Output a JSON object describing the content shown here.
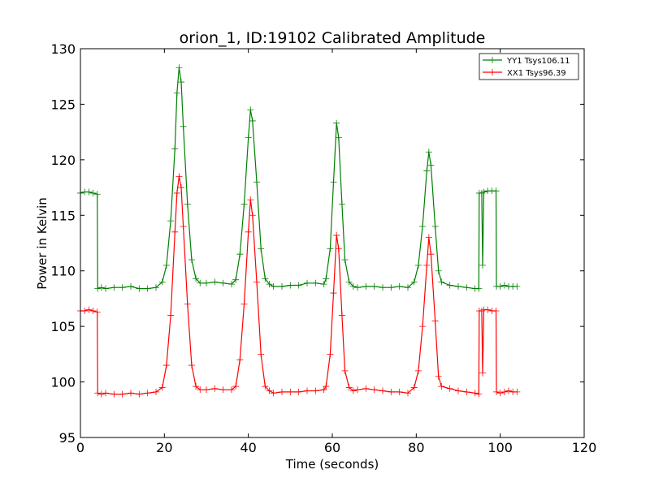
{
  "chart_data": {
    "type": "line",
    "title": "orion_1, ID:19102 Calibrated Amplitude",
    "xlabel": "Time (seconds)",
    "ylabel": "Power in Kelvin",
    "xlim": [
      0,
      120
    ],
    "ylim": [
      95,
      130
    ],
    "xticks": [
      0,
      20,
      40,
      60,
      80,
      100,
      120
    ],
    "yticks": [
      95,
      100,
      105,
      110,
      115,
      120,
      125,
      130
    ],
    "grid": false,
    "legend_position": "top-right",
    "markers": "plus",
    "series": [
      {
        "name": "YY1 Tsys106.11",
        "color": "#008000",
        "points": [
          [
            0,
            117.0
          ],
          [
            1,
            117.1
          ],
          [
            2,
            117.1
          ],
          [
            3,
            117.0
          ],
          [
            4,
            116.9
          ],
          [
            4.1,
            108.4
          ],
          [
            5,
            108.5
          ],
          [
            6,
            108.4
          ],
          [
            8,
            108.5
          ],
          [
            10,
            108.5
          ],
          [
            12,
            108.6
          ],
          [
            14,
            108.4
          ],
          [
            16,
            108.4
          ],
          [
            18,
            108.5
          ],
          [
            19.5,
            109.0
          ],
          [
            20.5,
            110.5
          ],
          [
            21.5,
            114.5
          ],
          [
            22.5,
            121.0
          ],
          [
            23.0,
            126.0
          ],
          [
            23.5,
            128.3
          ],
          [
            24.0,
            127.0
          ],
          [
            24.5,
            123.0
          ],
          [
            25.5,
            116.0
          ],
          [
            26.5,
            111.0
          ],
          [
            27.5,
            109.3
          ],
          [
            28.5,
            108.9
          ],
          [
            30,
            108.9
          ],
          [
            32,
            109.0
          ],
          [
            34,
            108.9
          ],
          [
            36,
            108.8
          ],
          [
            37,
            109.2
          ],
          [
            38,
            111.5
          ],
          [
            39,
            116.0
          ],
          [
            40,
            122.0
          ],
          [
            40.5,
            124.5
          ],
          [
            41,
            123.5
          ],
          [
            42,
            118.0
          ],
          [
            43,
            112.0
          ],
          [
            44,
            109.3
          ],
          [
            45,
            108.8
          ],
          [
            46,
            108.6
          ],
          [
            48,
            108.6
          ],
          [
            50,
            108.7
          ],
          [
            52,
            108.7
          ],
          [
            54,
            108.9
          ],
          [
            56,
            108.9
          ],
          [
            58,
            108.8
          ],
          [
            58.5,
            109.3
          ],
          [
            59.5,
            112.0
          ],
          [
            60.3,
            118.0
          ],
          [
            61.0,
            123.3
          ],
          [
            61.5,
            122.0
          ],
          [
            62.3,
            116.0
          ],
          [
            63.0,
            111.0
          ],
          [
            64.0,
            109.0
          ],
          [
            65,
            108.6
          ],
          [
            66,
            108.5
          ],
          [
            68,
            108.6
          ],
          [
            70,
            108.6
          ],
          [
            72,
            108.5
          ],
          [
            74,
            108.5
          ],
          [
            76,
            108.6
          ],
          [
            78,
            108.5
          ],
          [
            79.5,
            109.0
          ],
          [
            80.5,
            110.5
          ],
          [
            81.5,
            114.0
          ],
          [
            82.5,
            119.0
          ],
          [
            83.0,
            120.7
          ],
          [
            83.5,
            119.5
          ],
          [
            84.5,
            114.0
          ],
          [
            85.3,
            110.0
          ],
          [
            86.0,
            109.0
          ],
          [
            88,
            108.7
          ],
          [
            90,
            108.6
          ],
          [
            92,
            108.5
          ],
          [
            94,
            108.4
          ],
          [
            94.9,
            108.4
          ],
          [
            95.0,
            117.0
          ],
          [
            95.6,
            117.0
          ],
          [
            95.8,
            110.5
          ],
          [
            96.1,
            117.1
          ],
          [
            97,
            117.2
          ],
          [
            98,
            117.2
          ],
          [
            99,
            117.2
          ],
          [
            99.1,
            108.6
          ],
          [
            100,
            108.6
          ],
          [
            101,
            108.7
          ],
          [
            102,
            108.6
          ],
          [
            103,
            108.6
          ],
          [
            104,
            108.6
          ]
        ]
      },
      {
        "name": "XX1 Tsys96.39",
        "color": "#ff0000",
        "points": [
          [
            0,
            106.4
          ],
          [
            1,
            106.4
          ],
          [
            2,
            106.5
          ],
          [
            3,
            106.4
          ],
          [
            4,
            106.3
          ],
          [
            4.1,
            99.0
          ],
          [
            5,
            98.9
          ],
          [
            6,
            99.0
          ],
          [
            8,
            98.9
          ],
          [
            10,
            98.9
          ],
          [
            12,
            99.0
          ],
          [
            14,
            98.9
          ],
          [
            16,
            99.0
          ],
          [
            18,
            99.1
          ],
          [
            19.5,
            99.5
          ],
          [
            20.5,
            101.5
          ],
          [
            21.5,
            106.0
          ],
          [
            22.5,
            113.5
          ],
          [
            23.0,
            117.0
          ],
          [
            23.5,
            118.5
          ],
          [
            24.0,
            117.5
          ],
          [
            24.5,
            114.0
          ],
          [
            25.5,
            107.0
          ],
          [
            26.5,
            101.5
          ],
          [
            27.5,
            99.6
          ],
          [
            28.5,
            99.3
          ],
          [
            30,
            99.3
          ],
          [
            32,
            99.4
          ],
          [
            34,
            99.3
          ],
          [
            36,
            99.3
          ],
          [
            37,
            99.6
          ],
          [
            38,
            102.0
          ],
          [
            39,
            107.0
          ],
          [
            40,
            113.5
          ],
          [
            40.5,
            116.4
          ],
          [
            41,
            115.0
          ],
          [
            42,
            109.0
          ],
          [
            43,
            102.5
          ],
          [
            44,
            99.6
          ],
          [
            45,
            99.2
          ],
          [
            46,
            99.0
          ],
          [
            48,
            99.1
          ],
          [
            50,
            99.1
          ],
          [
            52,
            99.1
          ],
          [
            54,
            99.2
          ],
          [
            56,
            99.2
          ],
          [
            58,
            99.3
          ],
          [
            58.5,
            99.6
          ],
          [
            59.5,
            102.5
          ],
          [
            60.3,
            108.0
          ],
          [
            61.0,
            113.2
          ],
          [
            61.5,
            112.0
          ],
          [
            62.3,
            106.0
          ],
          [
            63.0,
            101.0
          ],
          [
            64.0,
            99.5
          ],
          [
            65,
            99.2
          ],
          [
            66,
            99.3
          ],
          [
            68,
            99.4
          ],
          [
            70,
            99.3
          ],
          [
            72,
            99.2
          ],
          [
            74,
            99.1
          ],
          [
            76,
            99.1
          ],
          [
            78,
            99.0
          ],
          [
            79.5,
            99.5
          ],
          [
            80.5,
            101.0
          ],
          [
            81.5,
            105.0
          ],
          [
            82.5,
            110.5
          ],
          [
            83.0,
            113.0
          ],
          [
            83.5,
            111.5
          ],
          [
            84.5,
            105.5
          ],
          [
            85.3,
            100.5
          ],
          [
            86.0,
            99.6
          ],
          [
            88,
            99.4
          ],
          [
            90,
            99.2
          ],
          [
            92,
            99.1
          ],
          [
            94,
            99.0
          ],
          [
            94.9,
            98.9
          ],
          [
            95.0,
            106.4
          ],
          [
            95.6,
            106.4
          ],
          [
            95.8,
            100.8
          ],
          [
            96.1,
            106.5
          ],
          [
            97,
            106.5
          ],
          [
            98,
            106.4
          ],
          [
            99,
            106.4
          ],
          [
            99.1,
            99.1
          ],
          [
            100,
            99.0
          ],
          [
            101,
            99.1
          ],
          [
            102,
            99.2
          ],
          [
            103,
            99.1
          ],
          [
            104,
            99.1
          ]
        ]
      }
    ]
  }
}
